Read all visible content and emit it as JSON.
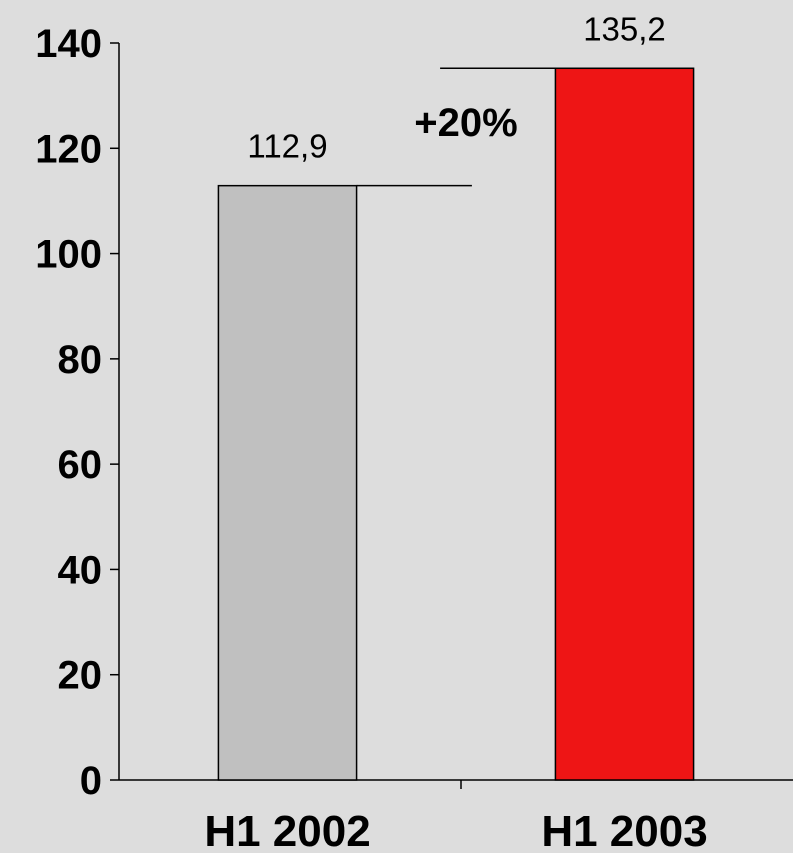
{
  "chart_data": {
    "type": "bar",
    "categories": [
      "H1 2002",
      "H1 2003"
    ],
    "values": [
      112.9,
      135.2
    ],
    "value_labels": [
      "112,9",
      "135,2"
    ],
    "colors": [
      "#c0c0c0",
      "#ee1515"
    ],
    "ylim": [
      0,
      140
    ],
    "yticks": [
      0,
      20,
      40,
      60,
      80,
      100,
      120,
      140
    ],
    "annotation": "+20%",
    "grid": false,
    "title": "",
    "xlabel": "",
    "ylabel": ""
  }
}
